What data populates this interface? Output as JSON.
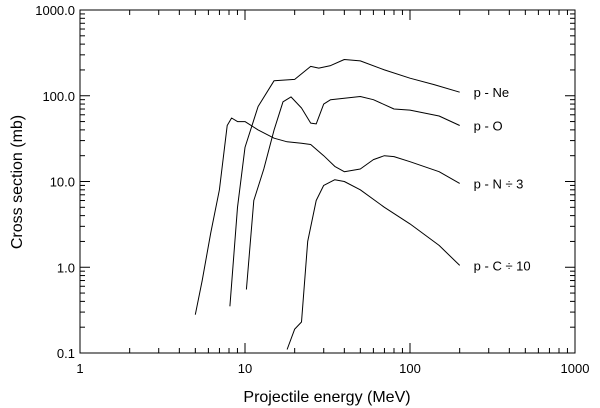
{
  "chart_data": {
    "type": "line",
    "title": "",
    "xlabel": "Projectile energy (MeV)",
    "ylabel": "Cross section (mb)",
    "xscale": "log",
    "yscale": "log",
    "xlim": [
      1,
      1000
    ],
    "ylim": [
      0.1,
      1000
    ],
    "x_ticks": [
      {
        "value": 1,
        "label": "1"
      },
      {
        "value": 10,
        "label": "10"
      },
      {
        "value": 100,
        "label": "100"
      },
      {
        "value": 1000,
        "label": "1000"
      }
    ],
    "y_ticks": [
      {
        "value": 0.1,
        "label": "0.1"
      },
      {
        "value": 1,
        "label": "1.0"
      },
      {
        "value": 10,
        "label": "10.0"
      },
      {
        "value": 100,
        "label": "100.0"
      },
      {
        "value": 1000,
        "label": "1000.0"
      }
    ],
    "grid": false,
    "legend": "none",
    "series": [
      {
        "name": "p - Ne",
        "points": [
          [
            8.1,
            0.35
          ],
          [
            9.0,
            5.0
          ],
          [
            10.0,
            25
          ],
          [
            12.0,
            75
          ],
          [
            15.0,
            150
          ],
          [
            20.0,
            155
          ],
          [
            25.0,
            220
          ],
          [
            28.0,
            210
          ],
          [
            33.0,
            225
          ],
          [
            40.0,
            265
          ],
          [
            50.0,
            255
          ],
          [
            70.0,
            200
          ],
          [
            100.0,
            160
          ],
          [
            140.0,
            135
          ],
          [
            200.0,
            110
          ]
        ]
      },
      {
        "name": "p - O",
        "points": [
          [
            10.2,
            0.55
          ],
          [
            11.3,
            6.0
          ],
          [
            13.0,
            14
          ],
          [
            15.0,
            40
          ],
          [
            17.0,
            85
          ],
          [
            19.0,
            97
          ],
          [
            22.0,
            72
          ],
          [
            25.0,
            48
          ],
          [
            27.0,
            47
          ],
          [
            30.0,
            80
          ],
          [
            33.0,
            90
          ],
          [
            50.0,
            98
          ],
          [
            60.0,
            90
          ],
          [
            80.0,
            70
          ],
          [
            100.0,
            68
          ],
          [
            150.0,
            58
          ],
          [
            200.0,
            45
          ]
        ]
      },
      {
        "name": "p - N ÷ 3",
        "points": [
          [
            5.0,
            0.28
          ],
          [
            5.5,
            0.7
          ],
          [
            6.2,
            2.5
          ],
          [
            7.0,
            8
          ],
          [
            7.8,
            45
          ],
          [
            8.3,
            55
          ],
          [
            9.0,
            50
          ],
          [
            10.0,
            50
          ],
          [
            12.0,
            40
          ],
          [
            15.0,
            32
          ],
          [
            18.0,
            29
          ],
          [
            22.0,
            28
          ],
          [
            25.0,
            27
          ],
          [
            30.0,
            20
          ],
          [
            35.0,
            15
          ],
          [
            40.0,
            13
          ],
          [
            50.0,
            14
          ],
          [
            60.0,
            18
          ],
          [
            70.0,
            20
          ],
          [
            80.0,
            19.5
          ],
          [
            100.0,
            17
          ],
          [
            150.0,
            13
          ],
          [
            200.0,
            9.5
          ]
        ]
      },
      {
        "name": "p - C ÷ 10",
        "points": [
          [
            18.0,
            0.11
          ],
          [
            20.0,
            0.19
          ],
          [
            22.0,
            0.23
          ],
          [
            24.0,
            2.0
          ],
          [
            27.0,
            6.0
          ],
          [
            30.0,
            9.0
          ],
          [
            35.0,
            10.5
          ],
          [
            40.0,
            10
          ],
          [
            50.0,
            8
          ],
          [
            70.0,
            5
          ],
          [
            100.0,
            3.2
          ],
          [
            150.0,
            1.8
          ],
          [
            200.0,
            1.05
          ]
        ]
      }
    ]
  }
}
